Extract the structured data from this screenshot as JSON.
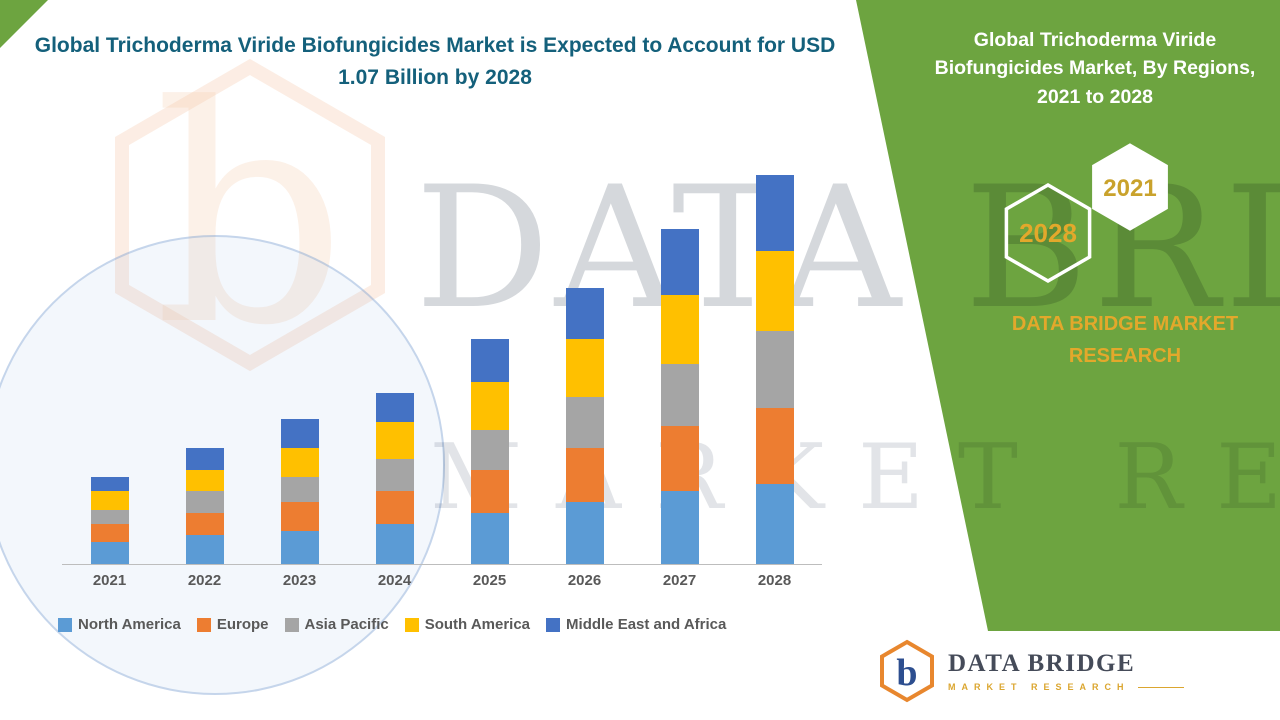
{
  "header": {
    "title": "Global Trichoderma Viride Biofungicides Market is Expected to Account for USD 1.07 Billion by 2028"
  },
  "side_panel": {
    "title": "Global Trichoderma Viride Biofungicides Market, By Regions, 2021 to 2028",
    "hexagon_start_year": "2028",
    "hexagon_end_year": "2021",
    "brand": "DATA BRIDGE MARKET RESEARCH",
    "background_color": "#6DA440",
    "accent_color": "#E3A82B"
  },
  "watermark": {
    "line1": "DATA BRIDGE",
    "line2": "MARKET RESEARCH"
  },
  "footer_logo": {
    "name": "DATA BRIDGE",
    "tagline": "MARKET RESEARCH"
  },
  "chart_data": {
    "type": "bar",
    "stacked": true,
    "title": "Global Trichoderma Viride Biofungicides Market is Expected to Account for USD 1.07 Billion by 2028",
    "categories": [
      "2021",
      "2022",
      "2023",
      "2024",
      "2025",
      "2026",
      "2027",
      "2028"
    ],
    "ylim": [
      0,
      1.1
    ],
    "grid": false,
    "legend_position": "bottom",
    "series": [
      {
        "name": "North America",
        "color": "#5B9BD5",
        "values": [
          0.06,
          0.08,
          0.09,
          0.11,
          0.14,
          0.17,
          0.2,
          0.22
        ]
      },
      {
        "name": "Europe",
        "color": "#ED7D31",
        "values": [
          0.05,
          0.06,
          0.08,
          0.09,
          0.12,
          0.15,
          0.18,
          0.21
        ]
      },
      {
        "name": "Asia Pacific",
        "color": "#A5A5A5",
        "values": [
          0.04,
          0.06,
          0.07,
          0.09,
          0.11,
          0.14,
          0.17,
          0.21
        ]
      },
      {
        "name": "South America",
        "color": "#FFC000",
        "values": [
          0.05,
          0.06,
          0.08,
          0.1,
          0.13,
          0.16,
          0.19,
          0.22
        ]
      },
      {
        "name": "Middle East and Africa",
        "color": "#4472C4",
        "values": [
          0.04,
          0.06,
          0.08,
          0.08,
          0.12,
          0.14,
          0.18,
          0.21
        ]
      }
    ],
    "totals_estimated": [
      0.24,
      0.32,
      0.4,
      0.47,
      0.62,
      0.76,
      0.92,
      1.07
    ]
  }
}
